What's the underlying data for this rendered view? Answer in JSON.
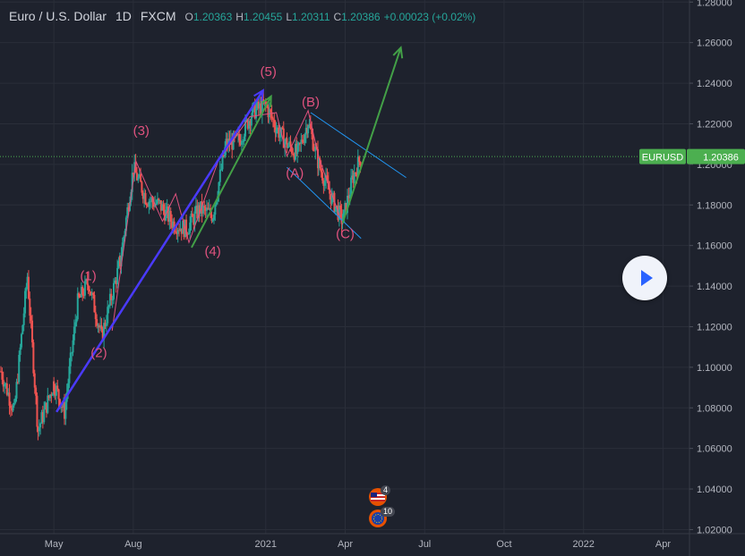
{
  "header": {
    "symbol": "Euro / U.S. Dollar",
    "interval": "1D",
    "exchange": "FXCM",
    "o_label": "O",
    "o_value": "1.20363",
    "h_label": "H",
    "h_value": "1.20455",
    "l_label": "L",
    "l_value": "1.20311",
    "c_label": "C",
    "c_value": "1.20386",
    "change": "+0.00023 (+0.02%)"
  },
  "price_tag": {
    "symbol": "EURUSD",
    "value": "1.20386",
    "color": "#4caf50"
  },
  "colors": {
    "background": "#1e222d",
    "up": "#26a69a",
    "down": "#ef5350",
    "wave_label": "#e0527f",
    "impulse_arrow": "#4a3aff",
    "green_arrow": "#43a047",
    "channel": "#2196f3"
  },
  "events": [
    {
      "icon": "us-flag-icon",
      "count": "4"
    },
    {
      "icon": "eu-flag-icon",
      "count": "10"
    }
  ],
  "chart_data": {
    "type": "candlestick",
    "title": "",
    "y_ticks": [
      "1.28000",
      "1.26000",
      "1.24000",
      "1.22000",
      "1.20000",
      "1.18000",
      "1.16000",
      "1.14000",
      "1.12000",
      "1.10000",
      "1.08000",
      "1.06000",
      "1.04000",
      "1.02000"
    ],
    "y_range": [
      1.018,
      1.281
    ],
    "x_ticks": [
      "May",
      "Aug",
      "2021",
      "Apr",
      "Jul",
      "Oct",
      "2022",
      "Apr"
    ],
    "x_tick_months": [
      4,
      7,
      12,
      15,
      18,
      21,
      24,
      27
    ],
    "x_range_months": [
      2.0,
      28.0
    ],
    "last_price": 1.20386,
    "waves": [
      {
        "label": "(1)",
        "x": 5.3,
        "y": 1.143
      },
      {
        "label": "(2)",
        "x": 5.7,
        "y": 1.105
      },
      {
        "label": "(3)",
        "x": 7.3,
        "y": 1.2145
      },
      {
        "label": "(4)",
        "x": 10.0,
        "y": 1.155
      },
      {
        "label": "(5)",
        "x": 12.1,
        "y": 1.2435
      },
      {
        "label": "(B)",
        "x": 13.7,
        "y": 1.2285
      },
      {
        "label": "(A)",
        "x": 13.1,
        "y": 1.1935
      },
      {
        "label": "(C)",
        "x": 15.0,
        "y": 1.1635
      }
    ],
    "wave_path": [
      [
        6.2,
        1.118
      ],
      [
        7.1,
        1.2015
      ],
      [
        8.1,
        1.172
      ],
      [
        8.6,
        1.1855
      ],
      [
        9.1,
        1.1615
      ],
      [
        10.2,
        1.2015
      ],
      [
        11.4,
        1.2235
      ],
      [
        12.4,
        1.2255
      ],
      [
        12.8,
        1.204
      ],
      [
        13.6,
        1.2265
      ],
      [
        14.0,
        1.2035
      ],
      [
        14.9,
        1.1705
      ]
    ],
    "swing_points": [
      [
        2.0,
        1.098
      ],
      [
        2.5,
        1.078
      ],
      [
        3.0,
        1.145
      ],
      [
        3.4,
        1.069
      ],
      [
        4.0,
        1.092
      ],
      [
        4.4,
        1.078
      ],
      [
        4.9,
        1.132
      ],
      [
        5.3,
        1.142
      ],
      [
        5.8,
        1.115
      ],
      [
        6.5,
        1.152
      ],
      [
        7.0,
        1.198
      ],
      [
        7.5,
        1.183
      ],
      [
        8.0,
        1.18
      ],
      [
        8.5,
        1.171
      ],
      [
        9.0,
        1.168
      ],
      [
        9.5,
        1.178
      ],
      [
        10.0,
        1.175
      ],
      [
        10.5,
        1.21
      ],
      [
        11.0,
        1.212
      ],
      [
        11.5,
        1.226
      ],
      [
        12.0,
        1.229
      ],
      [
        12.4,
        1.218
      ],
      [
        12.8,
        1.21
      ],
      [
        13.2,
        1.205
      ],
      [
        13.6,
        1.221
      ],
      [
        14.0,
        1.2
      ],
      [
        14.5,
        1.183
      ],
      [
        14.9,
        1.172
      ],
      [
        15.3,
        1.194
      ],
      [
        15.6,
        1.2039
      ]
    ],
    "arrows": [
      {
        "from": [
          4.1,
          1.078
        ],
        "to": [
          11.9,
          1.2365
        ],
        "color": "impulse"
      },
      {
        "from": [
          9.2,
          1.159
        ],
        "to": [
          12.2,
          1.2335
        ],
        "color": "green"
      },
      {
        "from": [
          14.9,
          1.171
        ],
        "to": [
          17.1,
          1.2575
        ],
        "color": "green"
      }
    ],
    "channel_lines": [
      {
        "from": [
          13.7,
          1.2255
        ],
        "to": [
          17.3,
          1.1935
        ]
      },
      {
        "from": [
          12.8,
          1.1985
        ],
        "to": [
          15.6,
          1.1635
        ]
      }
    ]
  }
}
